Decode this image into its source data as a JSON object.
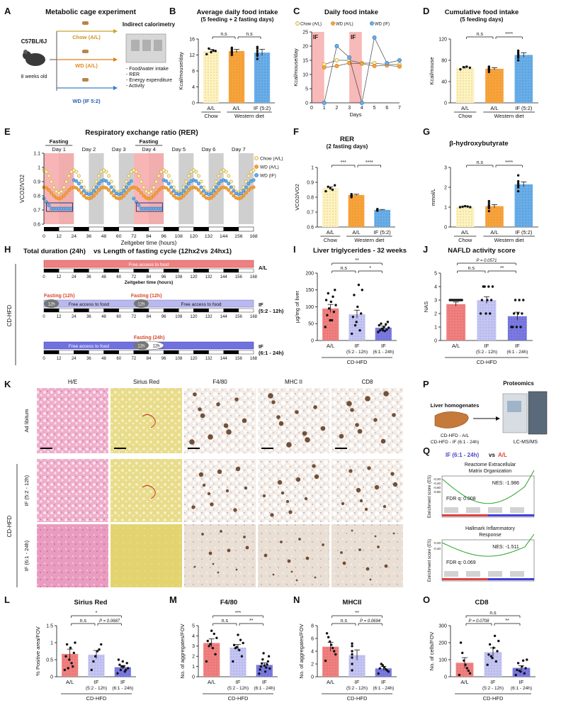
{
  "panels": {
    "A": {
      "letter": "A",
      "title": "Metabolic cage experiment",
      "mouse_strain": "C57BL/6J",
      "age": "8 weeks old",
      "arms": [
        "Chow (A/L)",
        "WD (A/L)",
        "WD (IF 5:2)"
      ],
      "device_title": "Indirect calorimetry",
      "measures": [
        "- Food/water intake",
        "- RER",
        "- Energy expenditure",
        "- Activity"
      ]
    },
    "B": {
      "letter": "B",
      "title": "Average daily food intake",
      "subtitle": "(5 feeding + 2 fasting days)"
    },
    "C": {
      "letter": "C",
      "title": "Daily food intake"
    },
    "D": {
      "letter": "D",
      "title": "Cumulative food intake",
      "subtitle": "(5 feeding days)"
    },
    "E": {
      "letter": "E",
      "title": "Respiratory exchange ratio (RER)"
    },
    "F": {
      "letter": "F",
      "title": "RER",
      "subtitle": "(2 fasting days)"
    },
    "G": {
      "letter": "G",
      "title": "β-hydroxybutyrate"
    },
    "H": {
      "letter": "H",
      "title_a": "Total duration (24h) ",
      "title_vs": "vs",
      "title_b": " Length of fasting cycle (12hx2 ",
      "title_b2": " 24hx1)",
      "side_label": "CD-HFD",
      "free_access": "Free access to food",
      "fasting12": "Fasting (12h)",
      "fasting24": "Fasting (24h)",
      "b12": "12h",
      "xlabel": "Zeitgeber time (hours)",
      "rows": [
        {
          "label": "A/L",
          "label2": ""
        },
        {
          "label": "IF",
          "label2": "(5:2 - 12h)"
        },
        {
          "label": "IF",
          "label2": "(6:1 - 24h)"
        }
      ],
      "ticks": [
        "0",
        "12",
        "24",
        "36",
        "48",
        "60",
        "72",
        "84",
        "96",
        "108",
        "120",
        "132",
        "144",
        "156",
        "168"
      ]
    },
    "I": {
      "letter": "I",
      "title": "Liver triglycerides - 32 weeks"
    },
    "J": {
      "letter": "J",
      "title": "NAFLD activity score"
    },
    "K": {
      "letter": "K",
      "columns": [
        "H/E",
        "Sirius Red",
        "F4/80",
        "MHC II",
        "CD8"
      ],
      "rows": [
        "Ad libitum",
        "IF (5:2 - 12h)",
        "IF (6:1 - 24h)"
      ],
      "group_label": "CD-HFD"
    },
    "P": {
      "letter": "P",
      "source": "Liver homogenates",
      "line1": "CD-HFD - A/L",
      "line2": "CD-HFD - IF (6:1 - 24h)",
      "method_title": "Proteomics",
      "method": "LC-MS/MS"
    },
    "Q": {
      "letter": "Q",
      "head_a": "IF (6:1 - 24h) ",
      "head_vs": "vs ",
      "head_b": "A/L",
      "gsea": [
        {
          "title1": "Reactome Extracellular",
          "title2": "Matrix Organization",
          "nes": "NES: -1.986",
          "fdr": "FDR q: 0.008"
        },
        {
          "title1": "Hallmark Inflammatory",
          "title2": "Response",
          "nes": "NES: -1.511",
          "fdr": "FDR q: 0.069"
        }
      ],
      "ylabel": "Enrichment score (ES)",
      "ticks1": [
        "-0.20",
        "-0.40",
        "-0.60",
        "-0.80"
      ],
      "ticks2": [
        "-0.20",
        "-0.40"
      ]
    },
    "L": {
      "letter": "L",
      "title": "Sirius Red"
    },
    "M": {
      "letter": "M",
      "title": "F4/80"
    },
    "N": {
      "letter": "N",
      "title": "MHCII"
    },
    "O": {
      "letter": "O",
      "title": "CD8"
    }
  },
  "colors": {
    "chow": "#fdf3c2",
    "chow_dark": "#c9a52a",
    "wd": "#f7a33c",
    "wd_dark": "#d9821c",
    "if": "#6aaee8",
    "if_dark": "#3a7fc4",
    "al_red": "#f08080",
    "if12": "#b9b9ef",
    "if24": "#7070df",
    "fasting": "#f6a8a8"
  },
  "chart_data": [
    {
      "id": "B",
      "type": "bar",
      "categories": [
        "A/L",
        "A/L",
        "IF (5:2)"
      ],
      "groups": [
        {
          "label": "Chow",
          "span": [
            0,
            0
          ]
        },
        {
          "label": "Western diet",
          "span": [
            1,
            2
          ]
        }
      ],
      "values": [
        13,
        13,
        12.6
      ],
      "errors": [
        0.4,
        0.4,
        0.8
      ],
      "points": [
        [
          12.2,
          12.7,
          13.0,
          13.6,
          13.1
        ],
        [
          12.0,
          12.4,
          12.8,
          13.2,
          13.5,
          13.8,
          12.6
        ],
        [
          11.0,
          11.8,
          12.4,
          13.0,
          13.6,
          14.0,
          12.2
        ]
      ],
      "ylabel": "Kcal/mouse/day",
      "ylim": [
        0,
        16
      ],
      "yticks": [
        0,
        4,
        8,
        12,
        16
      ],
      "significance": [
        {
          "pair": [
            0,
            1
          ],
          "label": "n.s"
        },
        {
          "pair": [
            1,
            2
          ],
          "label": "n.s"
        }
      ]
    },
    {
      "id": "C",
      "type": "line",
      "x": [
        0,
        1,
        2,
        3,
        4,
        5,
        6,
        7
      ],
      "xlabel": "Days",
      "ylabel": "Kcal/mouse/day",
      "ylim": [
        0,
        25
      ],
      "yticks": [
        0,
        5,
        10,
        15,
        20,
        25
      ],
      "fasting_days": [
        [
          0,
          1
        ],
        [
          3,
          4
        ]
      ],
      "fasting_label": "IF",
      "series": [
        {
          "name": "Chow (A/L)",
          "values": [
            null,
            13.5,
            15,
            15,
            14,
            14,
            13.5,
            13.5
          ]
        },
        {
          "name": "WD (A/L)",
          "values": [
            null,
            12.5,
            13,
            14,
            13.8,
            13,
            13.2,
            12.8
          ]
        },
        {
          "name": "WD (IF)",
          "values": [
            null,
            0,
            20,
            16,
            0,
            23,
            14,
            15
          ]
        }
      ]
    },
    {
      "id": "D",
      "type": "bar",
      "categories": [
        "A/L",
        "A/L",
        "IF (5:2)"
      ],
      "groups": [
        {
          "label": "Chow",
          "span": [
            0,
            0
          ]
        },
        {
          "label": "Western diet",
          "span": [
            1,
            2
          ]
        }
      ],
      "values": [
        66,
        64,
        90
      ],
      "errors": [
        2,
        2,
        4
      ],
      "points": [
        [
          63,
          66,
          68,
          67
        ],
        [
          58,
          61,
          63,
          65,
          66,
          68,
          64
        ],
        [
          80,
          85,
          88,
          92,
          95,
          98,
          89
        ]
      ],
      "ylabel": "Kcal/mouse",
      "ylim": [
        0,
        120
      ],
      "yticks": [
        0,
        40,
        80,
        120
      ],
      "significance": [
        {
          "pair": [
            0,
            1
          ],
          "label": "n.s"
        },
        {
          "pair": [
            1,
            2
          ],
          "label": "****"
        }
      ]
    },
    {
      "id": "E",
      "type": "line",
      "xlabel": "Zeitgeber time (hours)",
      "ylabel": "VCO2/VO2",
      "xlim": [
        0,
        168
      ],
      "xticks": [
        0,
        12,
        24,
        36,
        48,
        60,
        72,
        84,
        96,
        108,
        120,
        132,
        144,
        156,
        168
      ],
      "ylim": [
        0.6,
        1.1
      ],
      "yticks": [
        0.6,
        0.7,
        0.8,
        0.9,
        1.0,
        1.1
      ],
      "days": [
        "Day 1",
        "Day 2",
        "Day 3",
        "Day 4",
        "Day 5",
        "Day 6",
        "Day 7"
      ],
      "fasting_label": "Fasting",
      "series": [
        {
          "name": "Chow (A/L)"
        },
        {
          "name": "WD (A/L)"
        },
        {
          "name": "WD (IF)"
        }
      ]
    },
    {
      "id": "F",
      "type": "bar",
      "categories": [
        "A/L",
        "A/L",
        "IF (5:2)"
      ],
      "groups": [
        {
          "label": "Chow",
          "span": [
            0,
            0
          ]
        },
        {
          "label": "Western diet",
          "span": [
            1,
            2
          ]
        }
      ],
      "values": [
        0.86,
        0.815,
        0.715
      ],
      "errors": [
        0.01,
        0.005,
        0.003
      ],
      "points": [
        [
          0.84,
          0.86,
          0.88,
          0.87,
          0.85
        ],
        [
          0.8,
          0.81,
          0.82,
          0.815,
          0.81,
          0.82,
          0.81
        ],
        [
          0.71,
          0.715,
          0.72,
          0.71,
          0.715,
          0.72,
          0.71
        ]
      ],
      "ylabel": "VCO2/VO2",
      "ylim": [
        0.6,
        1.0
      ],
      "yticks": [
        0.6,
        0.7,
        0.8,
        0.9,
        1.0
      ],
      "significance": [
        {
          "pair": [
            0,
            1
          ],
          "label": "***"
        },
        {
          "pair": [
            1,
            2
          ],
          "label": "****"
        }
      ]
    },
    {
      "id": "G",
      "type": "bar",
      "categories": [
        "A/L",
        "A/L",
        "IF (5:2)"
      ],
      "groups": [
        {
          "label": "Chow",
          "span": [
            0,
            0
          ]
        },
        {
          "label": "Western diet",
          "span": [
            1,
            2
          ]
        }
      ],
      "values": [
        1.02,
        1.05,
        2.15
      ],
      "errors": [
        0.03,
        0.08,
        0.12
      ],
      "points": [
        [
          1.0,
          1.05,
          1.0,
          1.02,
          1.03
        ],
        [
          0.8,
          0.95,
          1.05,
          1.1,
          1.2,
          1.3,
          1.0
        ],
        [
          1.8,
          2.0,
          2.1,
          2.2,
          2.3,
          2.6,
          2.1
        ]
      ],
      "ylabel": "mmol/L",
      "ylim": [
        0,
        3
      ],
      "yticks": [
        0,
        1,
        2,
        3
      ],
      "significance": [
        {
          "pair": [
            0,
            1
          ],
          "label": "n.s"
        },
        {
          "pair": [
            1,
            2
          ],
          "label": "****"
        }
      ]
    },
    {
      "id": "I",
      "type": "bar",
      "categories": [
        "A/L",
        "IF",
        "IF"
      ],
      "category_sub": [
        "",
        "(5:2 - 12h)",
        "(6:1 - 24h)"
      ],
      "group": "CD-HFD",
      "values": [
        95,
        78,
        38
      ],
      "errors": [
        12,
        12,
        5
      ],
      "points": [
        [
          40,
          60,
          75,
          85,
          95,
          105,
          115,
          120,
          130,
          140,
          150,
          60
        ],
        [
          20,
          30,
          55,
          70,
          80,
          100,
          135,
          150,
          165,
          45
        ],
        [
          25,
          28,
          30,
          32,
          35,
          38,
          40,
          45,
          48,
          50,
          55,
          30
        ]
      ],
      "ylabel": "µg/mg of liver",
      "ylim": [
        0,
        200
      ],
      "yticks": [
        0,
        50,
        100,
        150,
        200
      ],
      "significance": [
        {
          "pair": [
            0,
            1
          ],
          "label": "n.s"
        },
        {
          "pair": [
            1,
            2
          ],
          "label": "*"
        },
        {
          "pair": [
            0,
            2
          ],
          "label": "**"
        }
      ]
    },
    {
      "id": "J",
      "type": "bar",
      "categories": [
        "A/L",
        "IF",
        "IF"
      ],
      "category_sub": [
        "",
        "(5:2 - 12h)",
        "(6:1 - 24h)"
      ],
      "group": "CD-HFD",
      "values": [
        2.7,
        3.0,
        1.8
      ],
      "errors": [
        0.15,
        0.25,
        0.3
      ],
      "points": [
        [
          3,
          3,
          3,
          3,
          3,
          3,
          3,
          3,
          3,
          3
        ],
        [
          2,
          2,
          2,
          3,
          3,
          3,
          4,
          4,
          4,
          4
        ],
        [
          1,
          1,
          1,
          1,
          2,
          2,
          2,
          3,
          3,
          3
        ]
      ],
      "ylabel": "NAS",
      "ylim": [
        0,
        5
      ],
      "yticks": [
        0,
        1,
        2,
        3,
        4,
        5
      ],
      "significance": [
        {
          "pair": [
            0,
            1
          ],
          "label": "n.s"
        },
        {
          "pair": [
            1,
            2
          ],
          "label": "**"
        },
        {
          "pair": [
            0,
            2
          ],
          "label": "P = 0.0571"
        }
      ]
    },
    {
      "id": "L",
      "type": "bar",
      "categories": [
        "A/L",
        "IF",
        "IF"
      ],
      "category_sub": [
        "",
        "(5:2 - 12h)",
        "(6:1 - 24h)"
      ],
      "group": "CD-HFD",
      "values": [
        0.67,
        0.65,
        0.28
      ],
      "errors": [
        0.14,
        0.12,
        0.05
      ],
      "points": [
        [
          0.2,
          0.3,
          0.5,
          0.6,
          0.7,
          0.85,
          0.95,
          1.0,
          0.4,
          0.25
        ],
        [
          0.2,
          0.45,
          0.6,
          0.75,
          0.8,
          0.95
        ],
        [
          0.1,
          0.15,
          0.2,
          0.25,
          0.3,
          0.35,
          0.4,
          0.45,
          0.5,
          0.2,
          0.3
        ]
      ],
      "ylabel": "% Positive area/FOV",
      "ylim": [
        0,
        1.5
      ],
      "yticks": [
        0,
        0.5,
        1.0,
        1.5
      ],
      "significance": [
        {
          "pair": [
            0,
            1
          ],
          "label": "n.s"
        },
        {
          "pair": [
            1,
            2
          ],
          "label": "P = 0.0687"
        },
        {
          "pair": [
            0,
            2
          ],
          "label": "*"
        }
      ]
    },
    {
      "id": "M",
      "type": "bar",
      "categories": [
        "A/L",
        "IF",
        "IF"
      ],
      "category_sub": [
        "",
        "(5:2 - 12h)",
        "(6:1 - 24h)"
      ],
      "group": "CD-HFD",
      "values": [
        3.3,
        2.85,
        1.15
      ],
      "errors": [
        0.4,
        0.3,
        0.2
      ],
      "points": [
        [
          1.5,
          2.2,
          2.8,
          3.2,
          3.5,
          3.8,
          4.2,
          4.5,
          3.0
        ],
        [
          1.5,
          2.0,
          2.6,
          2.9,
          3.1,
          3.3,
          3.6,
          4.1,
          2.8
        ],
        [
          0.3,
          0.5,
          0.7,
          0.9,
          1.0,
          1.2,
          1.3,
          1.5,
          1.7,
          2.0,
          2.3,
          0.8,
          1.1
        ]
      ],
      "ylabel": "No. of aggregates/FOV",
      "ylim": [
        0,
        5
      ],
      "yticks": [
        0,
        1,
        2,
        3,
        4,
        5
      ],
      "significance": [
        {
          "pair": [
            0,
            1
          ],
          "label": "n.s"
        },
        {
          "pair": [
            1,
            2
          ],
          "label": "**"
        },
        {
          "pair": [
            0,
            2
          ],
          "label": "***"
        }
      ]
    },
    {
      "id": "N",
      "type": "bar",
      "categories": [
        "A/L",
        "IF",
        "IF"
      ],
      "category_sub": [
        "",
        "(5:2 - 12h)",
        "(6:1 - 24h)"
      ],
      "group": "CD-HFD",
      "values": [
        4.7,
        3.4,
        1.3
      ],
      "errors": [
        0.7,
        0.8,
        0.3
      ],
      "points": [
        [
          2.5,
          3.5,
          4.0,
          4.5,
          5.0,
          5.5,
          6.2,
          6.8
        ],
        [
          1.0,
          2.0,
          3.0,
          3.5,
          4.0,
          4.8,
          5.2
        ],
        [
          0.5,
          0.8,
          1.0,
          1.2,
          1.5,
          1.8,
          2.0,
          1.3
        ]
      ],
      "ylabel": "No. of aggregates/FOV",
      "ylim": [
        0,
        8
      ],
      "yticks": [
        0,
        2,
        4,
        6,
        8
      ],
      "significance": [
        {
          "pair": [
            0,
            1
          ],
          "label": "n.s"
        },
        {
          "pair": [
            1,
            2
          ],
          "label": "P = 0.0694"
        },
        {
          "pair": [
            0,
            2
          ],
          "label": "**"
        }
      ]
    },
    {
      "id": "O",
      "type": "bar",
      "categories": [
        "A/L",
        "IF",
        "IF"
      ],
      "category_sub": [
        "",
        "(5:2 - 12h)",
        "(6:1 - 24h)"
      ],
      "group": "CD-HFD",
      "values": [
        82,
        145,
        52
      ],
      "errors": [
        30,
        25,
        12
      ],
      "points": [
        [
          10,
          20,
          35,
          50,
          70,
          95,
          140,
          200
        ],
        [
          70,
          90,
          110,
          130,
          150,
          170,
          190,
          210,
          240,
          120
        ],
        [
          10,
          20,
          30,
          40,
          50,
          60,
          80,
          100,
          95,
          35
        ]
      ],
      "ylabel": "No. of cells/FOV",
      "ylim": [
        0,
        300
      ],
      "yticks": [
        0,
        100,
        200,
        300
      ],
      "significance": [
        {
          "pair": [
            0,
            1
          ],
          "label": "P = 0.0708"
        },
        {
          "pair": [
            1,
            2
          ],
          "label": "**"
        },
        {
          "pair": [
            0,
            2
          ],
          "label": "n.s"
        }
      ]
    }
  ]
}
